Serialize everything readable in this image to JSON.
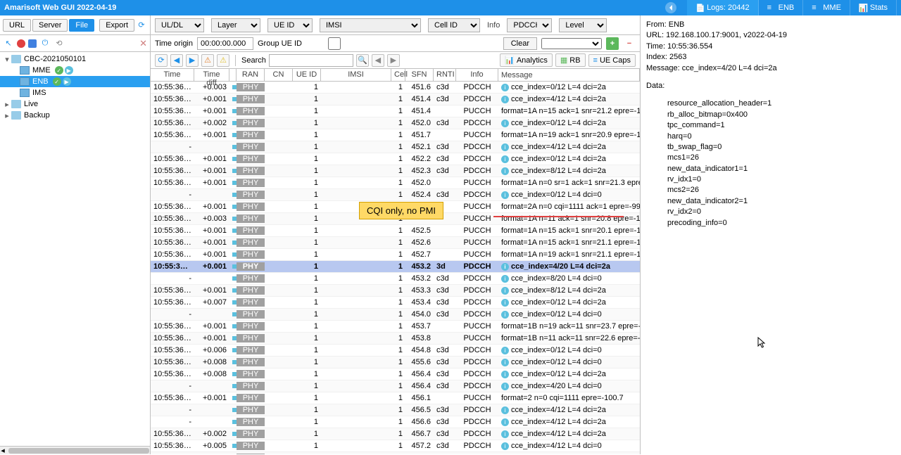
{
  "header": {
    "title": "Amarisoft Web GUI 2022-04-19",
    "tabs": [
      {
        "label": "Logs: 20442",
        "active": true
      },
      {
        "label": "ENB"
      },
      {
        "label": "MME"
      },
      {
        "label": "Stats"
      }
    ]
  },
  "leftToolbar": {
    "url": "URL",
    "server": "Server",
    "file": "File",
    "export": "Export"
  },
  "tree": {
    "root": "CBC-2021050101",
    "children": [
      {
        "label": "MME",
        "badges": [
          "✓",
          "▶"
        ]
      },
      {
        "label": "ENB",
        "badges": [
          "✓",
          "▶"
        ],
        "selected": true
      },
      {
        "label": "IMS"
      }
    ],
    "live": "Live",
    "backup": "Backup"
  },
  "filters": {
    "uldl": "UL/DL",
    "layer": "Layer",
    "ueid": "UE ID",
    "imsi": "IMSI",
    "cellid": "Cell ID",
    "info": "Info",
    "infoVal": "PDCCH, PI",
    "level": "Level"
  },
  "origin": {
    "label": "Time origin",
    "value": "00:00:00.000",
    "group": "Group UE ID",
    "clear": "Clear"
  },
  "actions": {
    "search": "Search",
    "analytics": "Analytics",
    "rb": "RB",
    "uecaps": "UE Caps"
  },
  "columns": [
    "Time",
    "Time diff",
    "RAN",
    "CN",
    "UE ID",
    "IMSI",
    "Cell",
    "SFN",
    "RNTI",
    "Info",
    "Message"
  ],
  "annotation": "CQI only, no PMI",
  "detail": {
    "from": "From:  ENB",
    "url": "URL:  192.168.100.17:9001, v2022-04-19",
    "time": "Time:  10:55:36.554",
    "index": "Index:  2563",
    "message": "Message:  cce_index=4/20 L=4 dci=2a",
    "data": "Data:",
    "lines": [
      "resource_allocation_header=1",
      "rb_alloc_bitmap=0x400",
      "tpc_command=1",
      "harq=0",
      "tb_swap_flag=0",
      "mcs1=26",
      "new_data_indicator1=1",
      "rv_idx1=0",
      "mcs2=26",
      "new_data_indicator2=1",
      "rv_idx2=0",
      "precoding_info=0"
    ]
  },
  "rows": [
    {
      "t": "10:55:36.538",
      "d": "+0.003",
      "c": "1",
      "sfn": "451.6",
      "r": "c3d",
      "i": "PDCCH",
      "m": "cce_index=0/12 L=4 dci=2a",
      "ic": true
    },
    {
      "t": "10:55:36.539",
      "d": "+0.001",
      "c": "1",
      "sfn": "451.4",
      "r": "c3d",
      "i": "PDCCH",
      "m": "cce_index=4/12 L=4 dci=2a",
      "ic": true
    },
    {
      "t": "10:55:36.540",
      "d": "+0.001",
      "c": "1",
      "sfn": "451.4",
      "r": "",
      "i": "PUCCH",
      "m": "format=1A n=15 ack=1 snr=21.2 epre=-101.4"
    },
    {
      "t": "10:55:36.542",
      "d": "+0.002",
      "c": "1",
      "sfn": "452.0",
      "r": "c3d",
      "i": "PDCCH",
      "m": "cce_index=0/12 L=4 dci=2a",
      "ic": true
    },
    {
      "t": "10:55:36.543",
      "d": "+0.001",
      "c": "1",
      "sfn": "451.7",
      "r": "",
      "i": "PUCCH",
      "m": "format=1A n=19 ack=1 snr=20.9 epre=-101.5"
    },
    {
      "t": "-",
      "d": "",
      "c": "1",
      "sfn": "452.1",
      "r": "c3d",
      "i": "PDCCH",
      "m": "cce_index=4/12 L=4 dci=2a",
      "ic": true
    },
    {
      "t": "10:55:36.544",
      "d": "+0.001",
      "c": "1",
      "sfn": "452.2",
      "r": "c3d",
      "i": "PDCCH",
      "m": "cce_index=0/12 L=4 dci=2a",
      "ic": true
    },
    {
      "t": "10:55:36.545",
      "d": "+0.001",
      "c": "1",
      "sfn": "452.3",
      "r": "c3d",
      "i": "PDCCH",
      "m": "cce_index=8/12 L=4 dci=2a",
      "ic": true
    },
    {
      "t": "10:55:36.546",
      "d": "+0.001",
      "c": "1",
      "sfn": "452.0",
      "r": "",
      "i": "PUCCH",
      "m": "format=1A n=0 sr=1 ack=1 snr=21.3 epre=-101.5"
    },
    {
      "t": "-",
      "d": "",
      "c": "1",
      "sfn": "452.4",
      "r": "c3d",
      "i": "PDCCH",
      "m": "cce_index=0/12 L=4 dci=0",
      "ic": true
    },
    {
      "t": "10:55:36.547",
      "d": "+0.001",
      "c": "1",
      "sfn": "",
      "r": "",
      "i": "PUCCH",
      "m": "format=2A n=0 cqi=1111 ack=1 epre=-99.6"
    },
    {
      "t": "10:55:36.550",
      "d": "+0.003",
      "c": "1",
      "sfn": "",
      "r": "",
      "i": "PUCCH",
      "m": "format=1A n=11 ack=1 snr=20.8 epre=-101.4"
    },
    {
      "t": "10:55:36.551",
      "d": "+0.001",
      "c": "1",
      "sfn": "452.5",
      "r": "",
      "i": "PUCCH",
      "m": "format=1A n=15 ack=1 snr=20.1 epre=-101.5"
    },
    {
      "t": "10:55:36.552",
      "d": "+0.001",
      "c": "1",
      "sfn": "452.6",
      "r": "",
      "i": "PUCCH",
      "m": "format=1A n=15 ack=1 snr=21.1 epre=-101.3"
    },
    {
      "t": "10:55:36.553",
      "d": "+0.001",
      "c": "1",
      "sfn": "452.7",
      "r": "",
      "i": "PUCCH",
      "m": "format=1A n=19 ack=1 snr=21.1 epre=-101.0"
    },
    {
      "t": "10:55:36.554",
      "d": "+0.001",
      "c": "1",
      "sfn": "453.2",
      "r": "3d",
      "i": "PDCCH",
      "m": "cce_index=4/20 L=4 dci=2a",
      "ic": true,
      "sel": true
    },
    {
      "t": "-",
      "d": "",
      "c": "1",
      "sfn": "453.2",
      "r": "c3d",
      "i": "PDCCH",
      "m": "cce_index=8/20 L=4 dci=0",
      "ic": true
    },
    {
      "t": "10:55:36.555",
      "d": "+0.001",
      "c": "1",
      "sfn": "453.3",
      "r": "c3d",
      "i": "PDCCH",
      "m": "cce_index=8/12 L=4 dci=2a",
      "ic": true
    },
    {
      "t": "10:55:36.562",
      "d": "+0.007",
      "c": "1",
      "sfn": "453.4",
      "r": "c3d",
      "i": "PDCCH",
      "m": "cce_index=0/12 L=4 dci=2a",
      "ic": true
    },
    {
      "t": "-",
      "d": "",
      "c": "1",
      "sfn": "454.0",
      "r": "c3d",
      "i": "PDCCH",
      "m": "cce_index=0/12 L=4 dci=0",
      "ic": true
    },
    {
      "t": "10:55:36.563",
      "d": "+0.001",
      "c": "1",
      "sfn": "453.7",
      "r": "",
      "i": "PUCCH",
      "m": "format=1B n=19 ack=11 snr=23.7 epre=-98.1"
    },
    {
      "t": "10:55:36.564",
      "d": "+0.001",
      "c": "1",
      "sfn": "453.8",
      "r": "",
      "i": "PUCCH",
      "m": "format=1B n=11 ack=11 snr=22.6 epre=-98.9"
    },
    {
      "t": "10:55:36.570",
      "d": "+0.006",
      "c": "1",
      "sfn": "454.8",
      "r": "c3d",
      "i": "PDCCH",
      "m": "cce_index=0/12 L=4 dci=0",
      "ic": true
    },
    {
      "t": "10:55:36.578",
      "d": "+0.008",
      "c": "1",
      "sfn": "455.6",
      "r": "c3d",
      "i": "PDCCH",
      "m": "cce_index=0/12 L=4 dci=0",
      "ic": true
    },
    {
      "t": "10:55:36.586",
      "d": "+0.008",
      "c": "1",
      "sfn": "456.4",
      "r": "c3d",
      "i": "PDCCH",
      "m": "cce_index=0/12 L=4 dci=2a",
      "ic": true
    },
    {
      "t": "-",
      "d": "",
      "c": "1",
      "sfn": "456.4",
      "r": "c3d",
      "i": "PDCCH",
      "m": "cce_index=4/20 L=4 dci=0",
      "ic": true
    },
    {
      "t": "10:55:36.587",
      "d": "+0.001",
      "c": "1",
      "sfn": "456.1",
      "r": "",
      "i": "PUCCH",
      "m": "format=2 n=0 cqi=1111 epre=-100.7"
    },
    {
      "t": "-",
      "d": "",
      "c": "1",
      "sfn": "456.5",
      "r": "c3d",
      "i": "PDCCH",
      "m": "cce_index=4/12 L=4 dci=2a",
      "ic": true
    },
    {
      "t": "-",
      "d": "",
      "c": "1",
      "sfn": "456.6",
      "r": "c3d",
      "i": "PDCCH",
      "m": "cce_index=4/12 L=4 dci=2a",
      "ic": true
    },
    {
      "t": "10:55:36.589",
      "d": "+0.002",
      "c": "1",
      "sfn": "456.7",
      "r": "c3d",
      "i": "PDCCH",
      "m": "cce_index=4/12 L=4 dci=2a",
      "ic": true
    },
    {
      "t": "10:55:36.594",
      "d": "+0.005",
      "c": "1",
      "sfn": "457.2",
      "r": "c3d",
      "i": "PDCCH",
      "m": "cce_index=4/12 L=4 dci=0",
      "ic": true
    },
    {
      "t": "10:55:36.595",
      "d": "+0.001",
      "c": "1",
      "sfn": "456.9",
      "r": "",
      "i": "PUCCH",
      "m": "format=1B n=15 ack=11 snr=21.7 epre=-100.0"
    },
    {
      "t": "10:55:36.597",
      "d": "+0.002",
      "c": "1",
      "sfn": "457.1",
      "r": "",
      "i": "PUCCH",
      "m": "format=1B n=15 ack=11 snr=22.6 epre=-99.6"
    }
  ]
}
